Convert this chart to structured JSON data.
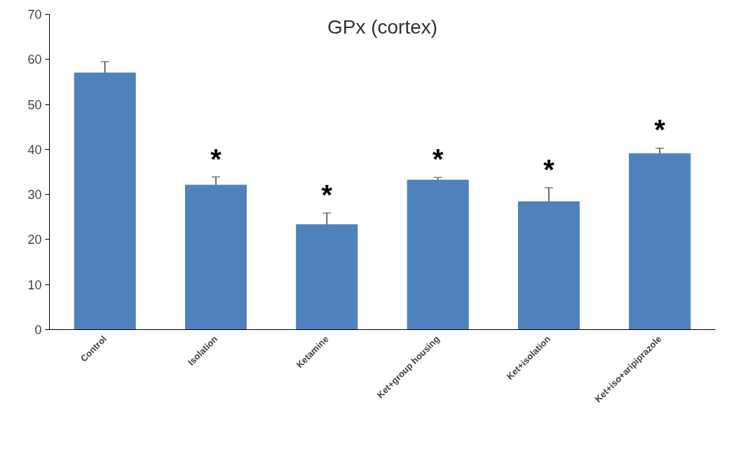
{
  "chart_data": {
    "type": "bar",
    "title": "GPx (cortex)",
    "categories": [
      "Control",
      "Isolation",
      "Ketamine",
      "Ket+group housing",
      "Ket+isolation",
      "Ket+iso+aripiprazole"
    ],
    "values": [
      57.0,
      32.1,
      23.3,
      33.2,
      28.4,
      39.1
    ],
    "errors": [
      2.5,
      1.8,
      2.6,
      0.6,
      3.1,
      1.2
    ],
    "color": "#4f81bd",
    "ylim": [
      0,
      70
    ],
    "yticks": [
      0,
      10,
      20,
      30,
      40,
      50,
      60,
      70
    ],
    "grid": false,
    "value_labels": [
      null,
      "*",
      "*",
      "*",
      "*",
      "*"
    ]
  }
}
